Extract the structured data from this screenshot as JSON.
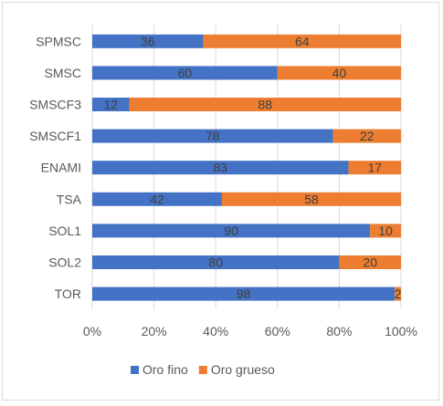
{
  "chart_data": {
    "type": "bar",
    "orientation": "horizontal",
    "stacked": "percent",
    "categories": [
      "SPMSC",
      "SMSC",
      "SMSCF3",
      "SMSCF1",
      "ENAMI",
      "TSA",
      "SOL1",
      "SOL2",
      "TOR"
    ],
    "series": [
      {
        "name": "Oro fino",
        "color": "#4472c4",
        "values": [
          36,
          60,
          12,
          78,
          83,
          42,
          90,
          80,
          98
        ]
      },
      {
        "name": "Oro grueso",
        "color": "#ed7d31",
        "values": [
          64,
          40,
          88,
          22,
          17,
          58,
          10,
          20,
          2
        ]
      }
    ],
    "xlim": [
      0,
      100
    ],
    "xticks": [
      "0%",
      "20%",
      "40%",
      "60%",
      "80%",
      "100%"
    ],
    "grid": "vertical",
    "legend": "bottom",
    "data_labels": true
  }
}
